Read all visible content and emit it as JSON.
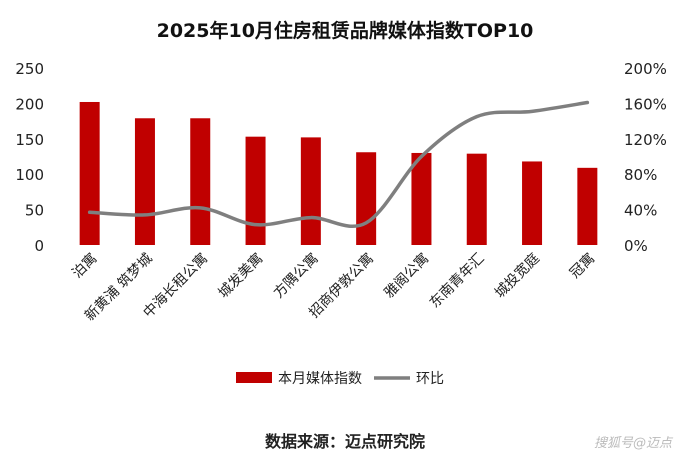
{
  "chart_data": {
    "type": "bar",
    "title": "2025年10月住房租赁品牌媒体指数TOP10",
    "categories": [
      "泊寓",
      "新黄浦 筑梦城",
      "中海长租公寓",
      "城发美寓",
      "方隅公寓",
      "招商伊敦公寓",
      "雅阁公寓",
      "东南青年汇",
      "城投宽庭",
      "冠寓"
    ],
    "series": [
      {
        "name": "本月媒体指数",
        "axis": "left",
        "kind": "bar",
        "values": [
          202,
          179,
          179,
          153,
          152,
          131,
          130,
          129,
          118,
          109
        ]
      },
      {
        "name": "环比",
        "axis": "right",
        "kind": "line",
        "unit": "%",
        "values": [
          37,
          34,
          42,
          23,
          31,
          25,
          100,
          145,
          151,
          161
        ]
      }
    ],
    "ylim_left": [
      0,
      250
    ],
    "yticks_left": [
      "0",
      "50",
      "100",
      "150",
      "200",
      "250"
    ],
    "ylim_right": [
      0,
      200
    ],
    "yticks_right": [
      "0%",
      "40%",
      "80%",
      "120%",
      "160%",
      "200%"
    ],
    "legend_position": "bottom",
    "colors": {
      "bar": "#c00000",
      "line": "#7f7f7f"
    }
  },
  "source": "数据来源：迈点研究院",
  "credit": "搜狐号@迈点"
}
